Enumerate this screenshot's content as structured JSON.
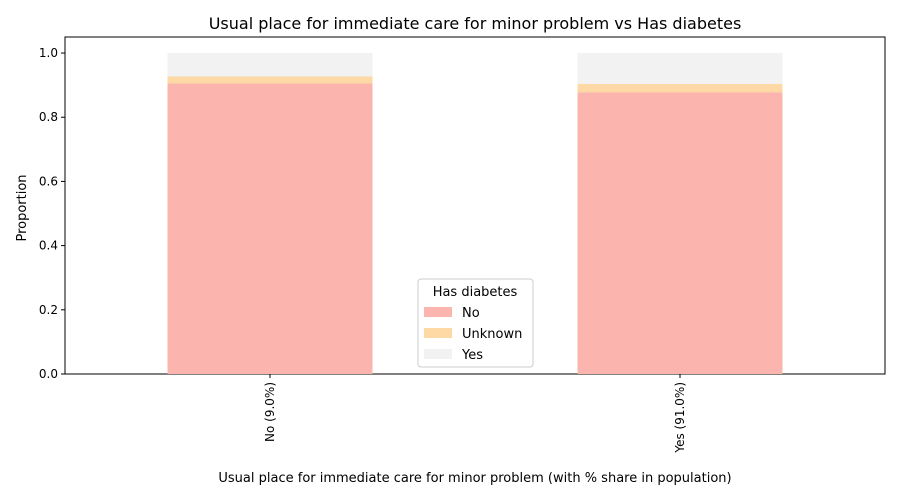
{
  "chart_data": {
    "type": "bar",
    "stacked": true,
    "title": "Usual place for immediate care for minor problem vs Has diabetes",
    "xlabel": "Usual place for immediate care for minor problem (with % share in population)",
    "ylabel": "Proportion",
    "categories": [
      "No (9.0%)",
      "Yes (91.0%)"
    ],
    "series": [
      {
        "name": "No",
        "values": [
          0.905,
          0.877
        ],
        "color": "#fbb4ae"
      },
      {
        "name": "Unknown",
        "values": [
          0.022,
          0.027
        ],
        "color": "#fed9a6"
      },
      {
        "name": "Yes",
        "values": [
          0.073,
          0.096
        ],
        "color": "#f2f2f2"
      }
    ],
    "ylim": [
      0,
      1.05
    ],
    "yticks": [
      "0.0",
      "0.2",
      "0.4",
      "0.6",
      "0.8",
      "1.0"
    ],
    "legend": {
      "title": "Has diabetes",
      "placement": "bottom-center"
    },
    "grid": false
  }
}
